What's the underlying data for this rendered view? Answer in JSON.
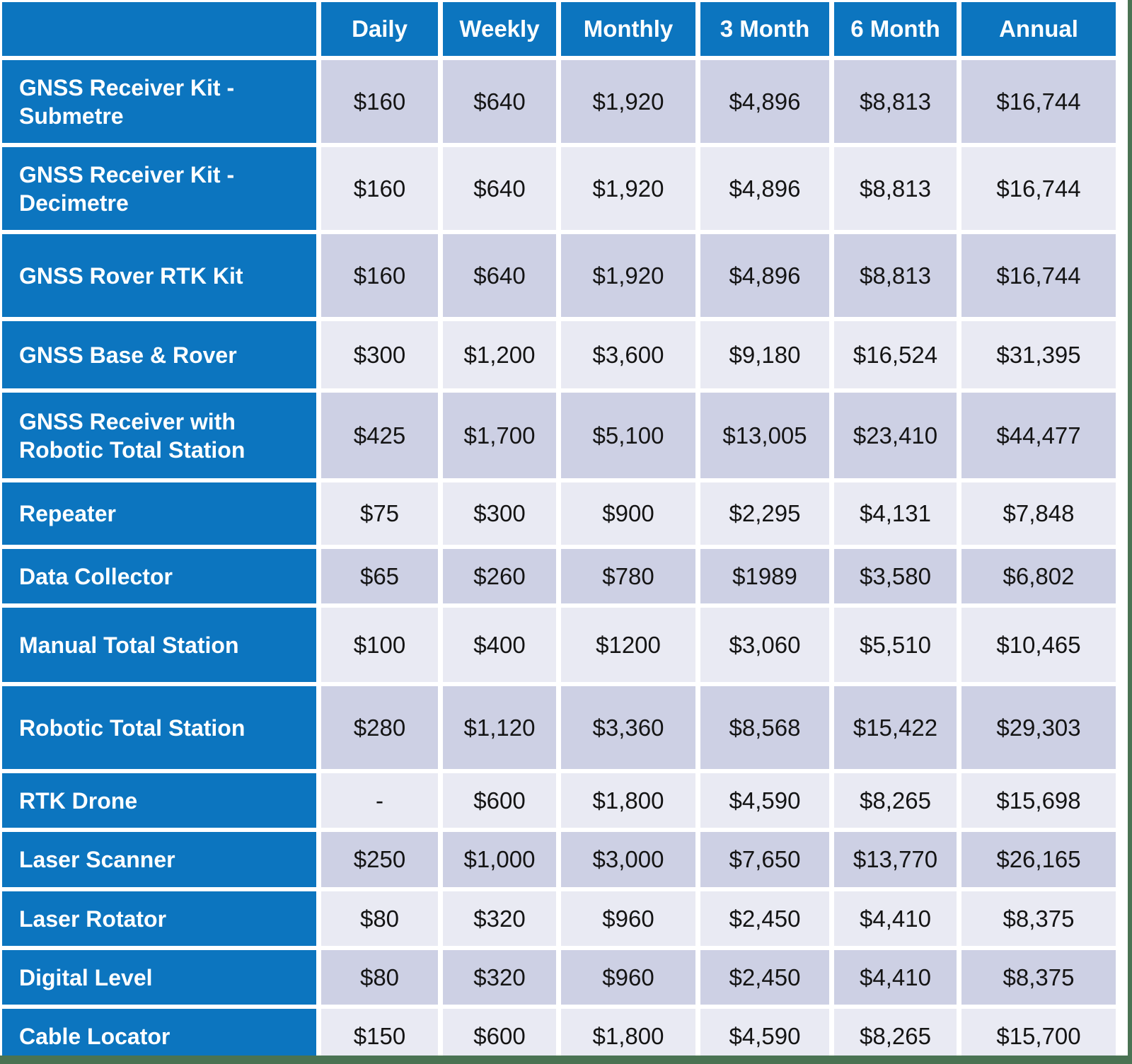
{
  "colors": {
    "header_blue": "#0c75bf",
    "band_dark": "#cdd0e4",
    "band_light": "#e9eaf3",
    "edge_green": "#4a7353",
    "header_text": "#ffffff",
    "value_text": "#141414"
  },
  "table": {
    "corner_label": "",
    "columns": [
      "Daily",
      "Weekly",
      "Monthly",
      "3 Month",
      "6 Month",
      "Annual"
    ],
    "rows": [
      {
        "label": "GNSS Receiver Kit - Submetre",
        "values": [
          "$160",
          "$640",
          "$1,920",
          "$4,896",
          "$8,813",
          "$16,744"
        ]
      },
      {
        "label": "GNSS Receiver Kit - Decimetre",
        "values": [
          "$160",
          "$640",
          "$1,920",
          "$4,896",
          "$8,813",
          "$16,744"
        ]
      },
      {
        "label": "GNSS Rover RTK Kit",
        "values": [
          "$160",
          "$640",
          "$1,920",
          "$4,896",
          "$8,813",
          "$16,744"
        ]
      },
      {
        "label": "GNSS Base & Rover",
        "values": [
          "$300",
          "$1,200",
          "$3,600",
          "$9,180",
          "$16,524",
          "$31,395"
        ]
      },
      {
        "label": "GNSS Receiver with Robotic Total Station",
        "values": [
          "$425",
          "$1,700",
          "$5,100",
          "$13,005",
          "$23,410",
          "$44,477"
        ]
      },
      {
        "label": "Repeater",
        "values": [
          "$75",
          "$300",
          "$900",
          "$2,295",
          "$4,131",
          "$7,848"
        ]
      },
      {
        "label": "Data Collector",
        "values": [
          "$65",
          "$260",
          "$780",
          "$1989",
          "$3,580",
          "$6,802"
        ]
      },
      {
        "label": "Manual Total Station",
        "values": [
          "$100",
          "$400",
          "$1200",
          "$3,060",
          "$5,510",
          "$10,465"
        ]
      },
      {
        "label": "Robotic Total Station",
        "values": [
          "$280",
          "$1,120",
          "$3,360",
          "$8,568",
          "$15,422",
          "$29,303"
        ]
      },
      {
        "label": "RTK Drone",
        "values": [
          "-",
          "$600",
          "$1,800",
          "$4,590",
          "$8,265",
          "$15,698"
        ]
      },
      {
        "label": "Laser Scanner",
        "values": [
          "$250",
          "$1,000",
          "$3,000",
          "$7,650",
          "$13,770",
          "$26,165"
        ]
      },
      {
        "label": "Laser Rotator",
        "values": [
          "$80",
          "$320",
          "$960",
          "$2,450",
          "$4,410",
          "$8,375"
        ]
      },
      {
        "label": "Digital Level",
        "values": [
          "$80",
          "$320",
          "$960",
          "$2,450",
          "$4,410",
          "$8,375"
        ]
      },
      {
        "label": "Cable Locator",
        "values": [
          "$150",
          "$600",
          "$1,800",
          "$4,590",
          "$8,265",
          "$15,700"
        ]
      }
    ]
  },
  "chart_data": {
    "type": "table",
    "title": "Equipment rental pricing",
    "columns": [
      "Daily",
      "Weekly",
      "Monthly",
      "3 Month",
      "6 Month",
      "Annual"
    ],
    "row_labels": [
      "GNSS Receiver Kit - Submetre",
      "GNSS Receiver Kit - Decimetre",
      "GNSS Rover RTK Kit",
      "GNSS Base & Rover",
      "GNSS Receiver with Robotic Total Station",
      "Repeater",
      "Data Collector",
      "Manual Total Station",
      "Robotic Total Station",
      "RTK Drone",
      "Laser Scanner",
      "Laser Rotator",
      "Digital Level",
      "Cable Locator"
    ],
    "values": [
      [
        160,
        640,
        1920,
        4896,
        8813,
        16744
      ],
      [
        160,
        640,
        1920,
        4896,
        8813,
        16744
      ],
      [
        160,
        640,
        1920,
        4896,
        8813,
        16744
      ],
      [
        300,
        1200,
        3600,
        9180,
        16524,
        31395
      ],
      [
        425,
        1700,
        5100,
        13005,
        23410,
        44477
      ],
      [
        75,
        300,
        900,
        2295,
        4131,
        7848
      ],
      [
        65,
        260,
        780,
        1989,
        3580,
        6802
      ],
      [
        100,
        400,
        1200,
        3060,
        5510,
        10465
      ],
      [
        280,
        1120,
        3360,
        8568,
        15422,
        29303
      ],
      [
        null,
        600,
        1800,
        4590,
        8265,
        15698
      ],
      [
        250,
        1000,
        3000,
        7650,
        13770,
        26165
      ],
      [
        80,
        320,
        960,
        2450,
        4410,
        8375
      ],
      [
        80,
        320,
        960,
        2450,
        4410,
        8375
      ],
      [
        150,
        600,
        1800,
        4590,
        8265,
        15700
      ]
    ],
    "unit": "USD $",
    "layout": "banded rows, blue header row and blue label column, green edge strips bottom/right"
  }
}
